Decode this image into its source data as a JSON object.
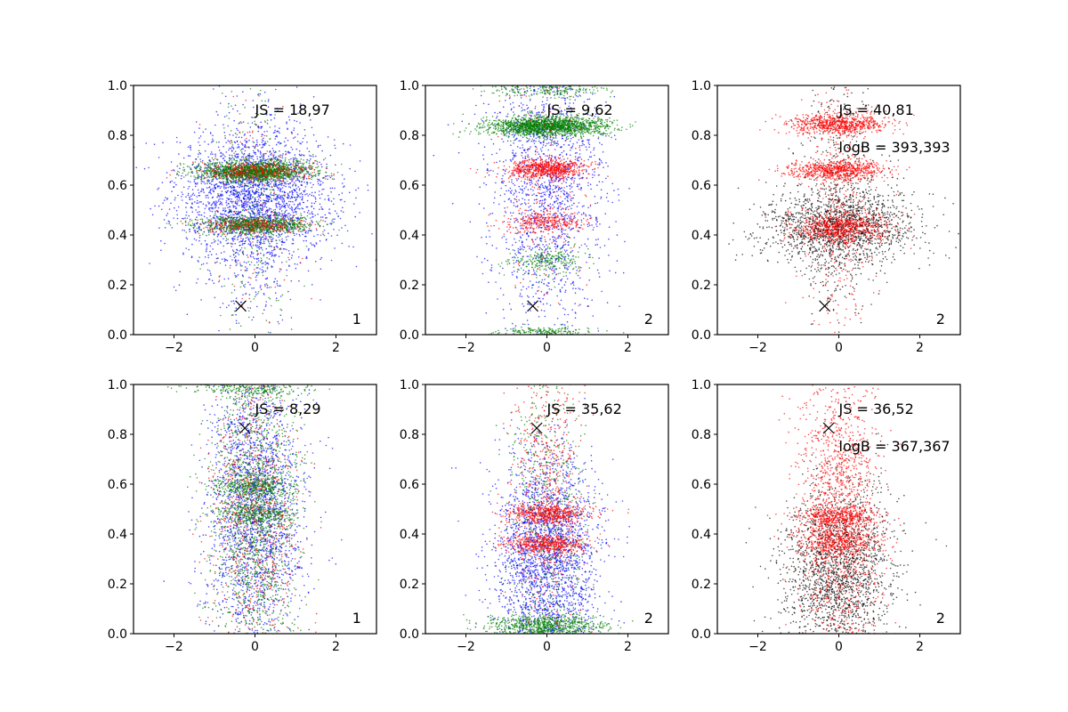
{
  "figure": {
    "rows": 2,
    "cols": 3
  },
  "colors": {
    "blue": "#0000ff",
    "green": "#007f00",
    "red": "#ff0000",
    "black": "#000000",
    "frame": "#000000"
  },
  "chart_data": [
    {
      "type": "scatter",
      "panel": "top-left",
      "xlim": [
        -3,
        3
      ],
      "ylim": [
        0,
        1
      ],
      "xticks": [
        -2,
        0,
        2
      ],
      "xtick_labels": [
        "−2",
        "0",
        "2"
      ],
      "yticks": [
        0.0,
        0.2,
        0.4,
        0.6,
        0.8,
        1.0
      ],
      "ytick_labels": [
        "0.0",
        "0.2",
        "0.4",
        "0.6",
        "0.8",
        "1.0"
      ],
      "annotations": [
        "JS = 18,97"
      ],
      "corner_label": "1",
      "marker_x": {
        "x": -0.35,
        "y": 0.115
      },
      "series": [
        {
          "name": "blue",
          "color": "#0000ff",
          "n": 2200,
          "x_sd": 1.0,
          "y_mean": 0.55,
          "y_sd": 0.13
        },
        {
          "name": "blue-tail",
          "color": "#0000ff",
          "n": 500,
          "x_sd": 0.6,
          "y_mean": 0.5,
          "y_sd": 0.3
        },
        {
          "name": "green-band",
          "color": "#007f00",
          "n": 1600,
          "x_sd": 0.7,
          "y_mean": 0.655,
          "y_sd": 0.02
        },
        {
          "name": "green-band",
          "color": "#007f00",
          "n": 900,
          "x_sd": 0.7,
          "y_mean": 0.44,
          "y_sd": 0.018
        },
        {
          "name": "green-scatter",
          "color": "#007f00",
          "n": 300,
          "x_sd": 0.5,
          "y_mean": 0.5,
          "y_sd": 0.3
        },
        {
          "name": "red-band",
          "color": "#ff0000",
          "n": 350,
          "x_sd": 0.7,
          "y_mean": 0.655,
          "y_sd": 0.02
        },
        {
          "name": "red-band",
          "color": "#ff0000",
          "n": 250,
          "x_sd": 0.7,
          "y_mean": 0.44,
          "y_sd": 0.018
        },
        {
          "name": "red-scatter",
          "color": "#ff0000",
          "n": 100,
          "x_sd": 0.5,
          "y_mean": 0.5,
          "y_sd": 0.3
        }
      ]
    },
    {
      "type": "scatter",
      "panel": "top-middle",
      "xlim": [
        -3,
        3
      ],
      "ylim": [
        0,
        1
      ],
      "xticks": [
        -2,
        0,
        2
      ],
      "xtick_labels": [
        "−2",
        "0",
        "2"
      ],
      "yticks": [
        0.0,
        0.2,
        0.4,
        0.6,
        0.8,
        1.0
      ],
      "ytick_labels": [
        "0.0",
        "0.2",
        "0.4",
        "0.6",
        "0.8",
        "1.0"
      ],
      "annotations": [
        "JS = 9,62"
      ],
      "corner_label": "2",
      "marker_x": {
        "x": -0.35,
        "y": 0.115
      },
      "series": [
        {
          "name": "blue",
          "color": "#0000ff",
          "n": 1700,
          "x_sd": 0.7,
          "y_mean": 0.6,
          "y_sd": 0.3
        },
        {
          "name": "green-band",
          "color": "#007f00",
          "n": 1700,
          "x_sd": 0.75,
          "y_mean": 0.835,
          "y_sd": 0.02
        },
        {
          "name": "green-band",
          "color": "#007f00",
          "n": 300,
          "x_sd": 0.7,
          "y_mean": 0.99,
          "y_sd": 0.02
        },
        {
          "name": "green-band",
          "color": "#007f00",
          "n": 250,
          "x_sd": 0.5,
          "y_mean": 0.3,
          "y_sd": 0.03
        },
        {
          "name": "green-band",
          "color": "#007f00",
          "n": 200,
          "x_sd": 0.6,
          "y_mean": 0.01,
          "y_sd": 0.01
        },
        {
          "name": "red-band",
          "color": "#ff0000",
          "n": 700,
          "x_sd": 0.5,
          "y_mean": 0.665,
          "y_sd": 0.02
        },
        {
          "name": "red-band",
          "color": "#ff0000",
          "n": 300,
          "x_sd": 0.5,
          "y_mean": 0.45,
          "y_sd": 0.02
        },
        {
          "name": "red-scatter",
          "color": "#ff0000",
          "n": 200,
          "x_sd": 0.5,
          "y_mean": 0.6,
          "y_sd": 0.25
        }
      ]
    },
    {
      "type": "scatter",
      "panel": "top-right",
      "xlim": [
        -3,
        3
      ],
      "ylim": [
        0,
        1
      ],
      "xticks": [
        -2,
        0,
        2
      ],
      "xtick_labels": [
        "−2",
        "0",
        "2"
      ],
      "yticks": [
        0.0,
        0.2,
        0.4,
        0.6,
        0.8,
        1.0
      ],
      "ytick_labels": [
        "0.0",
        "0.2",
        "0.4",
        "0.6",
        "0.8",
        "1.0"
      ],
      "annotations": [
        "JS = 40,81",
        "logB = 393,393"
      ],
      "corner_label": "2",
      "marker_x": {
        "x": -0.35,
        "y": 0.115
      },
      "series": [
        {
          "name": "black",
          "color": "#000000",
          "n": 1500,
          "x_sd": 1.0,
          "y_mean": 0.43,
          "y_sd": 0.08
        },
        {
          "name": "black-tail",
          "color": "#000000",
          "n": 500,
          "x_sd": 0.5,
          "y_mean": 0.6,
          "y_sd": 0.3
        },
        {
          "name": "red-band",
          "color": "#ff0000",
          "n": 700,
          "x_sd": 0.6,
          "y_mean": 0.845,
          "y_sd": 0.02
        },
        {
          "name": "red-band",
          "color": "#ff0000",
          "n": 700,
          "x_sd": 0.6,
          "y_mean": 0.66,
          "y_sd": 0.02
        },
        {
          "name": "red-band",
          "color": "#ff0000",
          "n": 700,
          "x_sd": 0.6,
          "y_mean": 0.43,
          "y_sd": 0.03
        },
        {
          "name": "red-scatter",
          "color": "#ff0000",
          "n": 400,
          "x_sd": 0.4,
          "y_mean": 0.5,
          "y_sd": 0.3
        }
      ]
    },
    {
      "type": "scatter",
      "panel": "bottom-left",
      "xlim": [
        -3,
        3
      ],
      "ylim": [
        0,
        1
      ],
      "xticks": [
        -2,
        0,
        2
      ],
      "xtick_labels": [
        "−2",
        "0",
        "2"
      ],
      "yticks": [
        0.0,
        0.2,
        0.4,
        0.6,
        0.8,
        1.0
      ],
      "ytick_labels": [
        "0.0",
        "0.2",
        "0.4",
        "0.6",
        "0.8",
        "1.0"
      ],
      "annotations": [
        "JS = 8,29"
      ],
      "corner_label": "1",
      "marker_x": {
        "x": -0.25,
        "y": 0.825
      },
      "series": [
        {
          "name": "blue",
          "color": "#0000ff",
          "n": 2200,
          "x_sd": 0.6,
          "y_mean": 0.5,
          "y_sd": 0.3
        },
        {
          "name": "green",
          "color": "#007f00",
          "n": 1600,
          "x_sd": 0.55,
          "y_mean": 0.5,
          "y_sd": 0.3
        },
        {
          "name": "green-band",
          "color": "#007f00",
          "n": 300,
          "x_sd": 0.5,
          "y_mean": 0.59,
          "y_sd": 0.02
        },
        {
          "name": "green-band",
          "color": "#007f00",
          "n": 300,
          "x_sd": 0.5,
          "y_mean": 0.48,
          "y_sd": 0.02
        },
        {
          "name": "green-band",
          "color": "#007f00",
          "n": 300,
          "x_sd": 0.7,
          "y_mean": 0.99,
          "y_sd": 0.02
        },
        {
          "name": "red",
          "color": "#ff0000",
          "n": 700,
          "x_sd": 0.55,
          "y_mean": 0.5,
          "y_sd": 0.3
        }
      ]
    },
    {
      "type": "scatter",
      "panel": "bottom-middle",
      "xlim": [
        -3,
        3
      ],
      "ylim": [
        0,
        1
      ],
      "xticks": [
        -2,
        0,
        2
      ],
      "xtick_labels": [
        "−2",
        "0",
        "2"
      ],
      "yticks": [
        0.0,
        0.2,
        0.4,
        0.6,
        0.8,
        1.0
      ],
      "ytick_labels": [
        "0.0",
        "0.2",
        "0.4",
        "0.6",
        "0.8",
        "1.0"
      ],
      "annotations": [
        "JS = 35,62"
      ],
      "corner_label": "2",
      "marker_x": {
        "x": -0.25,
        "y": 0.825
      },
      "series": [
        {
          "name": "blue",
          "color": "#0000ff",
          "n": 2400,
          "x_sd": 0.65,
          "y_mean": 0.3,
          "y_sd": 0.22
        },
        {
          "name": "green-band",
          "color": "#007f00",
          "n": 800,
          "x_sd": 0.7,
          "y_mean": 0.03,
          "y_sd": 0.025
        },
        {
          "name": "green",
          "color": "#007f00",
          "n": 600,
          "x_sd": 0.5,
          "y_mean": 0.5,
          "y_sd": 0.3
        },
        {
          "name": "red-band",
          "color": "#ff0000",
          "n": 500,
          "x_sd": 0.5,
          "y_mean": 0.48,
          "y_sd": 0.02
        },
        {
          "name": "red-band",
          "color": "#ff0000",
          "n": 500,
          "x_sd": 0.5,
          "y_mean": 0.36,
          "y_sd": 0.02
        },
        {
          "name": "red",
          "color": "#ff0000",
          "n": 600,
          "x_sd": 0.45,
          "y_mean": 0.6,
          "y_sd": 0.3
        }
      ]
    },
    {
      "type": "scatter",
      "panel": "bottom-right",
      "xlim": [
        -3,
        3
      ],
      "ylim": [
        0,
        1
      ],
      "xticks": [
        -2,
        0,
        2
      ],
      "xtick_labels": [
        "−2",
        "0",
        "2"
      ],
      "yticks": [
        0.0,
        0.2,
        0.4,
        0.6,
        0.8,
        1.0
      ],
      "ytick_labels": [
        "0.0",
        "0.2",
        "0.4",
        "0.6",
        "0.8",
        "1.0"
      ],
      "annotations": [
        "JS = 36,52",
        "logB = 367,367"
      ],
      "corner_label": "2",
      "marker_x": {
        "x": -0.25,
        "y": 0.825
      },
      "series": [
        {
          "name": "black",
          "color": "#000000",
          "n": 1900,
          "x_sd": 0.7,
          "y_mean": 0.25,
          "y_sd": 0.18
        },
        {
          "name": "red",
          "color": "#ff0000",
          "n": 1500,
          "x_sd": 0.5,
          "y_mean": 0.5,
          "y_sd": 0.3
        },
        {
          "name": "red-band",
          "color": "#ff0000",
          "n": 400,
          "x_sd": 0.5,
          "y_mean": 0.47,
          "y_sd": 0.02
        },
        {
          "name": "red-band",
          "color": "#ff0000",
          "n": 400,
          "x_sd": 0.5,
          "y_mean": 0.37,
          "y_sd": 0.025
        }
      ]
    }
  ]
}
